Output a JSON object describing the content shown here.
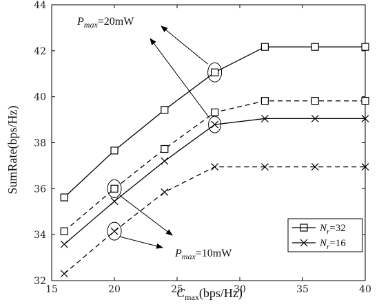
{
  "chart_data": {
    "type": "line",
    "title": "",
    "xlabel_main": "C",
    "xlabel_sub": "max",
    "xlabel_unit": "(bps/Hz)",
    "ylabel": "SumRate(bps/Hz)",
    "xlim": [
      15,
      40
    ],
    "ylim": [
      32,
      44
    ],
    "xticks": [
      15,
      20,
      25,
      30,
      35,
      40
    ],
    "yticks": [
      32,
      34,
      36,
      38,
      40,
      42,
      44
    ],
    "x": [
      16,
      20,
      24,
      28,
      32,
      36,
      40
    ],
    "series": [
      {
        "id": "nr32_p20",
        "group": "Nr=32",
        "pmax": "20mW",
        "marker": "square",
        "dash": "solid",
        "values": [
          35.62,
          37.66,
          39.43,
          41.06,
          42.17,
          42.17,
          42.17
        ]
      },
      {
        "id": "nr32_p10",
        "group": "Nr=32",
        "pmax": "10mW",
        "marker": "square",
        "dash": "dashed",
        "values": [
          34.15,
          36.0,
          37.73,
          39.32,
          39.82,
          39.82,
          39.82
        ]
      },
      {
        "id": "nr16_p20",
        "group": "Nr=16",
        "pmax": "20mW",
        "marker": "x",
        "dash": "solid",
        "values": [
          33.58,
          35.45,
          37.2,
          38.79,
          39.05,
          39.05,
          39.05
        ]
      },
      {
        "id": "nr16_p10",
        "group": "Nr=16",
        "pmax": "10mW",
        "marker": "x",
        "dash": "dashed",
        "values": [
          32.3,
          34.15,
          35.85,
          36.95,
          36.95,
          36.95,
          36.95
        ]
      }
    ],
    "legend": {
      "placement": "bottom-right",
      "entries": [
        {
          "sym": "N",
          "sub": "r",
          "rest": "=32",
          "marker": "square"
        },
        {
          "sym": "N",
          "sub": "r",
          "rest": "=16",
          "marker": "x"
        }
      ]
    },
    "annotations": [
      {
        "id": "pmax20",
        "sym": "P",
        "sub": "max",
        "rest": "=20mW"
      },
      {
        "id": "pmax10",
        "sym": "P",
        "sub": "max",
        "rest": "=10mW"
      }
    ],
    "grid": false,
    "line_color": "#000000"
  }
}
